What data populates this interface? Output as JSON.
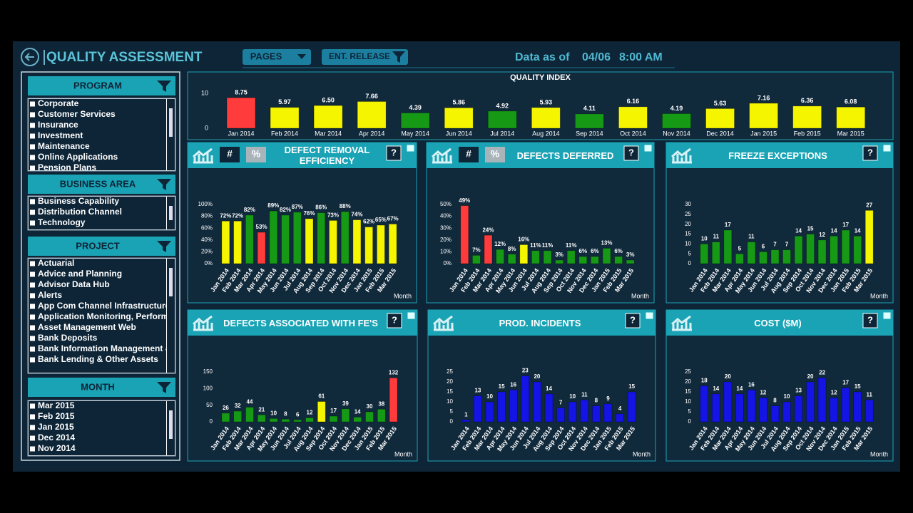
{
  "header": {
    "title": "QUALITY ASSESSMENT",
    "pages": "PAGES",
    "release": "ENT. RELEASE",
    "data_as_of": "Data as of",
    "date": "04/06",
    "time": "8:00 AM"
  },
  "filters": [
    {
      "title": "PROGRAM",
      "items": [
        "Corporate",
        "Customer Services",
        "Insurance",
        "Investment",
        "Maintenance",
        "Online Applications",
        "Pension Plans"
      ]
    },
    {
      "title": "BUSINESS AREA",
      "items": [
        "Business Capability",
        "Distribution Channel",
        "Technology"
      ]
    },
    {
      "title": "PROJECT",
      "items": [
        "Actuarial",
        "Advice and Planning",
        "Advisor Data Hub",
        "Alerts",
        "App Com Channel Infrastructure",
        "Application Monitoring, Perform",
        "Asset Management Web",
        "Bank Deposits",
        "Bank Information Management &",
        "Bank Lending & Other Assets"
      ]
    },
    {
      "title": "MONTH",
      "items": [
        "Mar 2015",
        "Feb 2015",
        "Jan 2015",
        "Dec 2014",
        "Nov 2014"
      ]
    }
  ],
  "chart_data": [
    {
      "type": "bar",
      "title": "QUALITY INDEX",
      "categories": [
        "Jan 2014",
        "Feb 2014",
        "Mar 2014",
        "Apr 2014",
        "May 2014",
        "Jun 2014",
        "Jul 2014",
        "Aug 2014",
        "Sep 2014",
        "Oct 2014",
        "Nov 2014",
        "Dec 2014",
        "Jan 2015",
        "Feb 2015",
        "Mar 2015"
      ],
      "values": [
        8.75,
        5.97,
        6.5,
        7.66,
        4.39,
        5.86,
        4.92,
        5.93,
        4.11,
        6.16,
        4.19,
        5.63,
        7.16,
        6.36,
        6.08
      ],
      "value_labels": [
        "8.75",
        "5.97",
        "6.50",
        "7.66",
        "4.39",
        "5.86",
        "4.92",
        "5.93",
        "4.11",
        "6.16",
        "4.19",
        "5.63",
        "7.16",
        "6.36",
        "6.08"
      ],
      "colors": [
        "#ff3b3b",
        "#f5f500",
        "#f5f500",
        "#f5f500",
        "#169a16",
        "#f5f500",
        "#169a16",
        "#f5f500",
        "#169a16",
        "#f5f500",
        "#169a16",
        "#f5f500",
        "#f5f500",
        "#f5f500",
        "#f5f500"
      ],
      "ylim": [
        0,
        10
      ],
      "yticks": [
        0,
        10
      ]
    },
    {
      "type": "bar",
      "title": "DEFECT REMOVAL EFFICIENCY",
      "toggles": [
        "#",
        "%"
      ],
      "help": "?",
      "x_label": "Month",
      "categories": [
        "Jan 2014",
        "Feb 2014",
        "Mar 2014",
        "Apr 2014",
        "May 2014",
        "Jun 2014",
        "Jul 2014",
        "Aug 2014",
        "Sep 2014",
        "Oct 2014",
        "Nov 2014",
        "Dec 2014",
        "Jan 2015",
        "Feb 2015",
        "Mar 2015"
      ],
      "values": [
        72,
        72,
        82,
        53,
        89,
        82,
        87,
        76,
        86,
        73,
        88,
        74,
        62,
        65,
        67
      ],
      "value_labels": [
        "72%",
        "72%",
        "82%",
        "53%",
        "89%",
        "82%",
        "87%",
        "76%",
        "86%",
        "73%",
        "88%",
        "74%",
        "62%",
        "65%",
        "67%"
      ],
      "colors": [
        "#f5f500",
        "#f5f500",
        "#169a16",
        "#ff3b3b",
        "#169a16",
        "#169a16",
        "#169a16",
        "#f5f500",
        "#169a16",
        "#f5f500",
        "#169a16",
        "#f5f500",
        "#f5f500",
        "#f5f500",
        "#f5f500"
      ],
      "ylim": [
        0,
        100
      ],
      "yticks": [
        {
          "value": 0,
          "label": "0%"
        },
        {
          "value": 20,
          "label": "20%"
        },
        {
          "value": 40,
          "label": "40%"
        },
        {
          "value": 60,
          "label": "60%"
        },
        {
          "value": 80,
          "label": "80%"
        },
        {
          "value": 100,
          "label": "100%"
        }
      ]
    },
    {
      "type": "bar",
      "title": "DEFECTS DEFERRED",
      "toggles": [
        "#",
        "%"
      ],
      "help": "?",
      "x_label": "Month",
      "categories": [
        "Jan 2014",
        "Feb 2014",
        "Mar 2014",
        "Apr 2014",
        "May 2014",
        "Jun 2014",
        "Jul 2014",
        "Aug 2014",
        "Sep 2014",
        "Oct 2014",
        "Nov 2014",
        "Dec 2014",
        "Jan 2015",
        "Feb 2015",
        "Mar 2015"
      ],
      "values": [
        49,
        7,
        24,
        12,
        8,
        16,
        11,
        11,
        3,
        11,
        6,
        6,
        13,
        6,
        3
      ],
      "value_labels": [
        "49%",
        "7%",
        "24%",
        "12%",
        "8%",
        "16%",
        "11%",
        "11%",
        "3%",
        "11%",
        "6%",
        "6%",
        "13%",
        "6%",
        "3%"
      ],
      "colors": [
        "#ff3b3b",
        "#169a16",
        "#ff3b3b",
        "#169a16",
        "#169a16",
        "#f5f500",
        "#169a16",
        "#169a16",
        "#169a16",
        "#169a16",
        "#169a16",
        "#169a16",
        "#169a16",
        "#169a16",
        "#169a16"
      ],
      "ylim": [
        0,
        50
      ],
      "yticks": [
        {
          "value": 0,
          "label": "0%"
        },
        {
          "value": 10,
          "label": "10%"
        },
        {
          "value": 20,
          "label": "20%"
        },
        {
          "value": 30,
          "label": "30%"
        },
        {
          "value": 40,
          "label": "40%"
        },
        {
          "value": 50,
          "label": "50%"
        }
      ]
    },
    {
      "type": "bar",
      "title": "FREEZE EXCEPTIONS",
      "help": "?",
      "x_label": "Month",
      "categories": [
        "Jan 2014",
        "Feb 2014",
        "Mar 2014",
        "Apr 2014",
        "May 2014",
        "Jun 2014",
        "Jul 2014",
        "Aug 2014",
        "Sep 2014",
        "Oct 2014",
        "Nov 2014",
        "Dec 2014",
        "Jan 2015",
        "Feb 2015",
        "Mar 2015"
      ],
      "values": [
        10,
        11,
        17,
        5,
        11,
        6,
        7,
        7,
        14,
        15,
        12,
        14,
        17,
        14,
        27
      ],
      "colors": [
        "#169a16",
        "#169a16",
        "#169a16",
        "#169a16",
        "#169a16",
        "#169a16",
        "#169a16",
        "#169a16",
        "#169a16",
        "#169a16",
        "#169a16",
        "#169a16",
        "#169a16",
        "#169a16",
        "#f5f500"
      ],
      "ylim": [
        0,
        30
      ],
      "yticks": [
        0,
        5,
        10,
        15,
        20,
        25,
        30
      ]
    },
    {
      "type": "bar",
      "title": "DEFECTS ASSOCIATED WITH FE'S",
      "help": "?",
      "x_label": "Month",
      "categories": [
        "Jan 2014",
        "Feb 2014",
        "Mar 2014",
        "Apr 2014",
        "May 2014",
        "Jun 2014",
        "Jul 2014",
        "Aug 2014",
        "Sep 2014",
        "Oct 2014",
        "Nov 2014",
        "Dec 2014",
        "Jan 2015",
        "Feb 2015",
        "Mar 2015"
      ],
      "values": [
        26,
        32,
        44,
        21,
        10,
        8,
        6,
        12,
        61,
        17,
        39,
        14,
        30,
        38,
        132
      ],
      "colors": [
        "#169a16",
        "#169a16",
        "#169a16",
        "#169a16",
        "#169a16",
        "#169a16",
        "#169a16",
        "#169a16",
        "#f5f500",
        "#169a16",
        "#169a16",
        "#169a16",
        "#169a16",
        "#169a16",
        "#ff3b3b"
      ],
      "ylim": [
        0,
        150
      ],
      "yticks": [
        0,
        50,
        100,
        150
      ]
    },
    {
      "type": "bar",
      "title": "PROD. INCIDENTS",
      "help": "?",
      "x_label": "Month",
      "categories": [
        "Jan 2014",
        "Feb 2014",
        "Mar 2014",
        "Apr 2014",
        "May 2014",
        "Jun 2014",
        "Jul 2014",
        "Aug 2014",
        "Sep 2014",
        "Oct 2014",
        "Nov 2014",
        "Dec 2014",
        "Jan 2015",
        "Feb 2015",
        "Mar 2015"
      ],
      "values": [
        1,
        13,
        10,
        15,
        16,
        23,
        20,
        14,
        7,
        10,
        11,
        8,
        9,
        4,
        15
      ],
      "color": "#1414e6",
      "ylim": [
        0,
        25
      ],
      "yticks": [
        0,
        5,
        10,
        15,
        20,
        25
      ]
    },
    {
      "type": "bar",
      "title": "COST ($M)",
      "help": "?",
      "x_label": "Month",
      "categories": [
        "Jan 2014",
        "Feb 2014",
        "Mar 2014",
        "Apr 2014",
        "May 2014",
        "Jun 2014",
        "Jul 2014",
        "Aug 2014",
        "Sep 2014",
        "Oct 2014",
        "Nov 2014",
        "Dec 2014",
        "Jan 2015",
        "Feb 2015",
        "Mar 2015"
      ],
      "values": [
        18,
        14,
        20,
        14,
        16,
        12,
        8,
        10,
        13,
        20,
        22,
        12,
        17,
        15,
        11
      ],
      "color": "#1414e6",
      "ylim": [
        0,
        25
      ],
      "yticks": [
        0,
        5,
        10,
        15,
        20,
        25
      ]
    }
  ]
}
